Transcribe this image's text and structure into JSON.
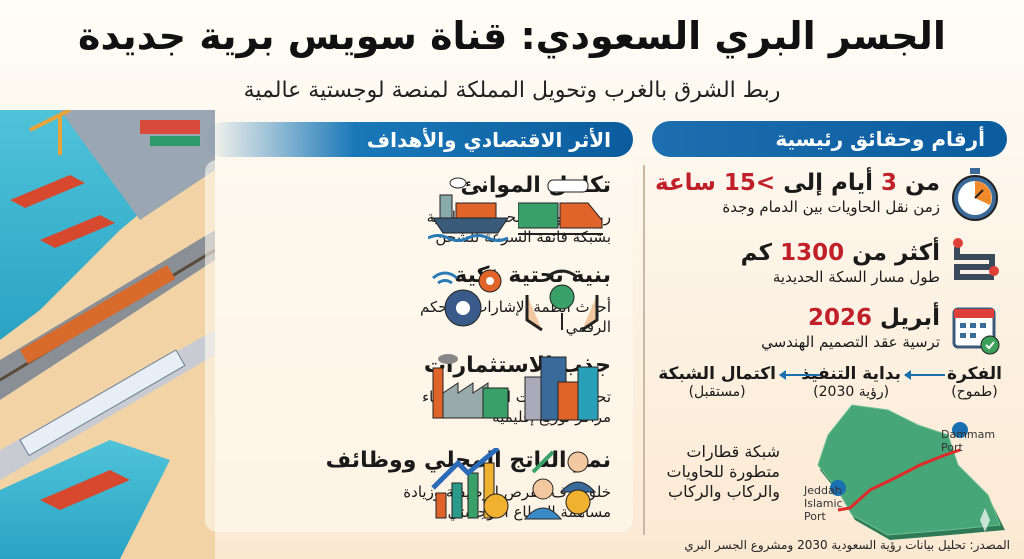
{
  "header": {
    "title": "الجسر البري السعودي: قناة سويس برية جديدة",
    "subtitle": "ربط الشرق بالغرب وتحويل المملكة لمنصة لوجستية عالمية"
  },
  "economic": {
    "title": "الأثر الاقتصادي والأهداف",
    "items": [
      {
        "title": "تكامل الموانئ",
        "desc": "ربط الموانئ البحرية الأساسية بشبكة فائقة السرعة للشحن",
        "icons": [
          "cargo-ship-icon",
          "train-icon"
        ]
      },
      {
        "title": "بنية تحتية ذكية",
        "desc": "أحدث أنظمة الإشارات والتحكم الرقمي",
        "icons": [
          "gears-wifi-icon",
          "hands-gear-icon"
        ]
      },
      {
        "title": "جذب الاستثمارات",
        "desc": "تحفيز الشركات العالمية لإنشاء مراكز توزيع إقليمية",
        "icons": [
          "factory-icon",
          "buildings-icon"
        ]
      },
      {
        "title": "نمو الناتج المحلي ووظائف",
        "desc": "خلق آلاف الفرص الوظيفية وزيادة مساهمة القطاع اللوجستي",
        "icons": [
          "growth-chart-icon",
          "people-money-icon"
        ]
      }
    ]
  },
  "facts": {
    "title": "أرقام وحقائق رئيسية",
    "items": [
      {
        "pre": "من ",
        "n1": "3",
        "mid": " أيام إلى ",
        "n2": ">15 ساعة",
        "desc": "زمن نقل الحاويات بين الدمام وجدة",
        "icon": "stopwatch-icon"
      },
      {
        "pre": "أكثر من ",
        "n1": "1300",
        "mid": " كم",
        "n2": "",
        "desc": "طول مسار السكة الحديدية",
        "icon": "route-icon"
      },
      {
        "pre": "أبريل ",
        "n1": "2026",
        "mid": "",
        "n2": "",
        "desc": "ترسية عقد التصميم الهندسي",
        "icon": "calendar-check-icon"
      }
    ]
  },
  "timeline": [
    {
      "label": "الفكرة",
      "sub": "(طموح)"
    },
    {
      "label": "بداية التنفيذ",
      "sub": "(رؤية 2030)"
    },
    {
      "label": "اكتمال الشبكة",
      "sub": "(مستقبل)"
    }
  ],
  "map": {
    "text": "شبكة قطارات متطورة للحاويات والركاب والركاب",
    "port_east": "Dammam Port",
    "port_west": "Jeddah Islamic Port"
  },
  "source": "المصدر: تحليل بيانات رؤية السعودية 2030 ومشروع الجسر البري",
  "colors": {
    "accent": "#0b5c9e",
    "highlight": "#c0202a",
    "map": "#3f9a6e",
    "route": "#e02a2a"
  }
}
